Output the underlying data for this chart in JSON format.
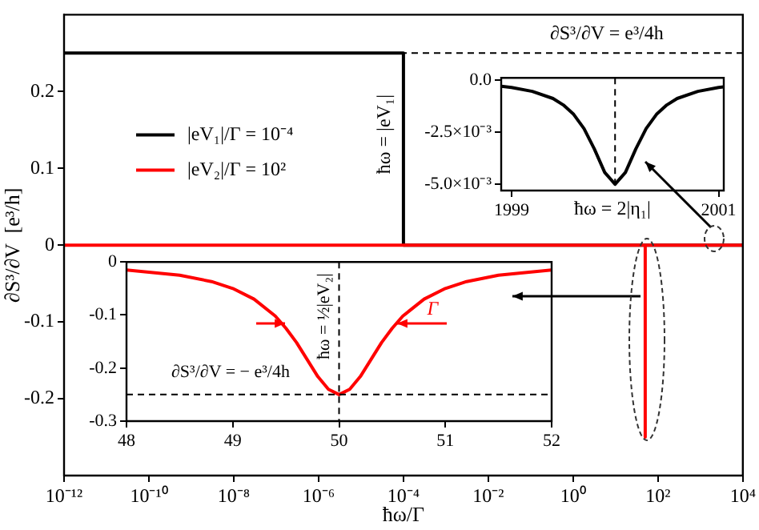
{
  "chart_data": [
    {
      "type": "line",
      "xlabel": "ħω/Γ",
      "ylabel": "∂S³/∂V  [e³/h]",
      "log": "x",
      "grid": false,
      "legend": "top left",
      "xlim": [
        1e-12,
        10000
      ],
      "ylim": [
        -0.3,
        0.3
      ],
      "xticks": [
        {
          "value": 1e-12,
          "label": "10⁻¹²"
        },
        {
          "value": 1e-10,
          "label": "10⁻¹⁰"
        },
        {
          "value": 1e-08,
          "label": "10⁻⁸"
        },
        {
          "value": 1e-06,
          "label": "10⁻⁶"
        },
        {
          "value": 0.0001,
          "label": "10⁻⁴"
        },
        {
          "value": 0.01,
          "label": "10⁻²"
        },
        {
          "value": 1,
          "label": "10⁰"
        },
        {
          "value": 100,
          "label": "10²"
        },
        {
          "value": 10000,
          "label": "10⁴"
        }
      ],
      "yticks": [
        -0.2,
        -0.1,
        0,
        0.1,
        0.2
      ],
      "series": [
        {
          "name": "|eV₁|/Γ = 10⁻⁴",
          "color": "#000000",
          "x": [
            1e-12,
            0.0001,
            0.0001,
            10000
          ],
          "values": [
            0.25,
            0.25,
            0,
            0
          ]
        },
        {
          "name": "|eV₂|/Γ = 10²",
          "color": "#ff0000",
          "x": [
            1e-12,
            50,
            50,
            50,
            10000
          ],
          "values": [
            0,
            0,
            -0.25,
            0,
            0
          ]
        }
      ],
      "ref_lines": [
        {
          "axis": "y",
          "value": 0.25,
          "label": "∂S³/∂V = e³/4h",
          "line_style": "dashed"
        }
      ]
    },
    {
      "type": "line",
      "ylabel": "ħω = |eV₁|",
      "grid": false,
      "xlim": [
        1998.9,
        2001.05
      ],
      "ylim": [
        -0.0053,
        0.0001
      ],
      "xlabel": "ħω = 2|η₁|",
      "xticks": [
        1999,
        2001
      ],
      "yticks": [
        {
          "value": 0,
          "label": "0.0"
        },
        {
          "value": -0.0025,
          "label": "-2.5×10⁻³"
        },
        {
          "value": -0.005,
          "label": "-5.0×10⁻³"
        }
      ],
      "series": [
        {
          "color": "#000000",
          "x": [
            1998.9,
            1999.0,
            1999.2,
            1999.4,
            1999.5,
            1999.6,
            1999.7,
            1999.8,
            1999.9,
            2000.0,
            2000.1,
            2000.2,
            2000.3,
            2000.4,
            2000.5,
            2000.6,
            2000.8,
            2001.0,
            2001.05
          ],
          "values": [
            -0.0003,
            -0.00036,
            -0.00055,
            -0.00089,
            -0.0012,
            -0.00165,
            -0.00233,
            -0.00331,
            -0.00443,
            -0.005,
            -0.00443,
            -0.00331,
            -0.00233,
            -0.00165,
            -0.0012,
            -0.00089,
            -0.00055,
            -0.00036,
            -0.00033
          ]
        }
      ],
      "ref_lines": [
        {
          "axis": "x",
          "value": 2000,
          "line_style": "dashed"
        }
      ]
    },
    {
      "type": "line",
      "grid": false,
      "xlim": [
        48,
        52
      ],
      "ylim": [
        -0.3,
        0
      ],
      "xticks": [
        48,
        49,
        50,
        51,
        52
      ],
      "yticks": [
        0,
        -0.1,
        -0.2,
        -0.3
      ],
      "series": [
        {
          "color": "#ff0000",
          "x": [
            48,
            48.5,
            48.8,
            49,
            49.2,
            49.4,
            49.5,
            49.6,
            49.7,
            49.8,
            49.9,
            50,
            50.1,
            50.2,
            50.3,
            50.4,
            50.5,
            50.6,
            50.8,
            51,
            51.2,
            51.5,
            52
          ],
          "values": [
            -0.015,
            -0.025,
            -0.037,
            -0.05,
            -0.07,
            -0.102,
            -0.125,
            -0.152,
            -0.184,
            -0.216,
            -0.24,
            -0.25,
            -0.24,
            -0.216,
            -0.184,
            -0.152,
            -0.125,
            -0.102,
            -0.07,
            -0.05,
            -0.037,
            -0.025,
            -0.015
          ]
        }
      ],
      "ref_lines": [
        {
          "axis": "y",
          "value": -0.25,
          "label": "∂S³/∂V = − e³/4h",
          "line_style": "dashed"
        },
        {
          "axis": "x",
          "value": 50,
          "label": "ħω = ½|eV₂|",
          "line_style": "dashed"
        }
      ],
      "annotations": [
        "Γ"
      ]
    }
  ]
}
